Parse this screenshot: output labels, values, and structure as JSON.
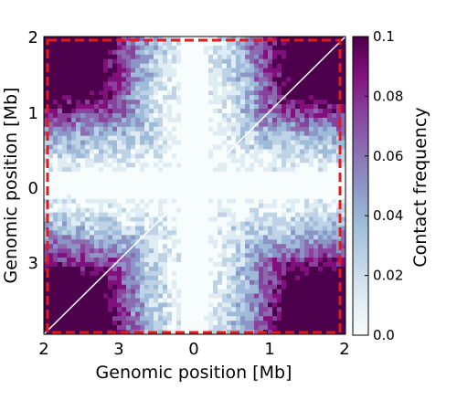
{
  "chart_data": {
    "type": "heatmap",
    "title": "",
    "xlabel": "Genomic position [Mb]",
    "ylabel": "Genomic position [Mb]",
    "x_tick_labels": [
      "2",
      "3",
      "0",
      "1",
      "2"
    ],
    "y_tick_labels": [
      "2",
      "1",
      "0",
      "3"
    ],
    "colorbar": {
      "label": "Contact frequency",
      "range": [
        0.0,
        0.1
      ],
      "tick_labels": [
        "0.0",
        "0.02",
        "0.04",
        "0.06",
        "0.08",
        "0.1"
      ],
      "colormap": "BuPu",
      "colors": [
        "#f7fcfd",
        "#e0ecf4",
        "#bfd3e6",
        "#9ebcda",
        "#8c96c6",
        "#8c6bb1",
        "#88419d",
        "#810f7c",
        "#4d004b"
      ]
    },
    "pattern": "Cross-shaped low-contact band through the center, high contact frequency (saturated ~0.1) in the four corners; white diagonal line",
    "highlight_box": {
      "color": "#e41a1c",
      "style": "dashed"
    }
  }
}
